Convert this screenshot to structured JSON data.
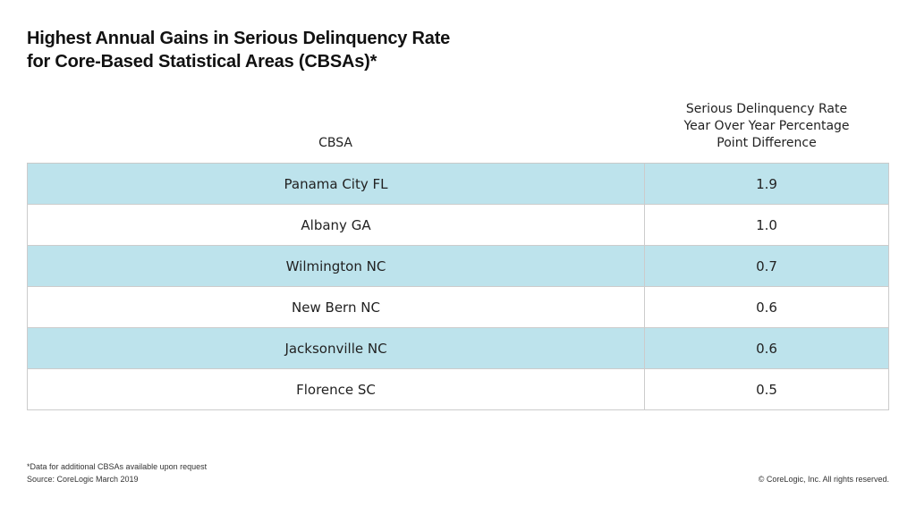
{
  "title_lines": [
    "Highest Annual Gains in Serious Delinquency Rate",
    "for Core-Based Statistical Areas (CBSAs)*"
  ],
  "chart_data": {
    "type": "table",
    "columns": [
      "CBSA",
      "Serious Delinquency Rate Year Over Year Percentage Point Difference"
    ],
    "header_lines": {
      "col1": [
        "CBSA"
      ],
      "col2": [
        "Serious Delinquency Rate",
        "Year Over Year Percentage",
        "Point Difference"
      ]
    },
    "rows": [
      {
        "cbsa": "Panama City FL",
        "value": "1.9"
      },
      {
        "cbsa": "Albany GA",
        "value": "1.0"
      },
      {
        "cbsa": "Wilmington NC",
        "value": "0.7"
      },
      {
        "cbsa": "New Bern NC",
        "value": "0.6"
      },
      {
        "cbsa": "Jacksonville NC",
        "value": "0.6"
      },
      {
        "cbsa": "Florence SC",
        "value": "0.5"
      }
    ],
    "row_colors": [
      "#bde3ec",
      "#ffffff"
    ]
  },
  "footnote": "*Data for additional CBSAs available upon request",
  "source": "Source: CoreLogic March 2019",
  "copyright": "© CoreLogic, Inc. All rights reserved."
}
